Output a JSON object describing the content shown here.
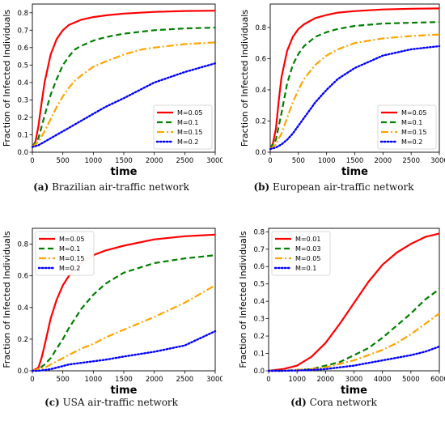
{
  "chart_data": [
    {
      "type": "line",
      "caption_tag": "(a)",
      "caption_text": "Brazilian air-traffic network",
      "xlabel": "time",
      "ylabel": "Fraction of Infected Individuals",
      "xlim": [
        0,
        3000
      ],
      "ylim": [
        0,
        0.85
      ],
      "xticks": [
        0,
        500,
        1000,
        1500,
        2000,
        2500,
        3000
      ],
      "yticks": [
        0.0,
        0.1,
        0.2,
        0.3,
        0.4,
        0.5,
        0.6,
        0.7,
        0.8
      ],
      "legend_position": "bottom-right",
      "series": [
        {
          "name": "M=0.05",
          "color": "#ff0000",
          "style": "solid",
          "x": [
            0,
            50,
            100,
            150,
            200,
            300,
            400,
            500,
            600,
            700,
            800,
            1000,
            1200,
            1500,
            2000,
            2500,
            3000
          ],
          "y": [
            0.03,
            0.06,
            0.15,
            0.28,
            0.4,
            0.56,
            0.65,
            0.7,
            0.73,
            0.745,
            0.76,
            0.775,
            0.785,
            0.795,
            0.805,
            0.81,
            0.812
          ]
        },
        {
          "name": "M=0.1",
          "color": "#008000",
          "style": "dashed",
          "x": [
            0,
            100,
            200,
            300,
            400,
            500,
            600,
            700,
            800,
            1000,
            1200,
            1500,
            2000,
            2500,
            3000
          ],
          "y": [
            0.03,
            0.08,
            0.21,
            0.33,
            0.42,
            0.5,
            0.55,
            0.59,
            0.61,
            0.64,
            0.66,
            0.68,
            0.7,
            0.71,
            0.715
          ]
        },
        {
          "name": "M=0.15",
          "color": "#ffa500",
          "style": "dashdot",
          "x": [
            0,
            100,
            200,
            300,
            400,
            500,
            600,
            700,
            800,
            1000,
            1200,
            1500,
            1800,
            2000,
            2500,
            3000
          ],
          "y": [
            0.03,
            0.06,
            0.12,
            0.19,
            0.26,
            0.32,
            0.37,
            0.41,
            0.44,
            0.49,
            0.52,
            0.56,
            0.59,
            0.6,
            0.62,
            0.63
          ]
        },
        {
          "name": "M=0.2",
          "color": "#0000ff",
          "style": "dotted",
          "x": [
            0,
            100,
            200,
            300,
            400,
            500,
            600,
            700,
            800,
            1000,
            1200,
            1500,
            2000,
            2500,
            3000
          ],
          "y": [
            0.03,
            0.04,
            0.06,
            0.08,
            0.1,
            0.12,
            0.14,
            0.16,
            0.18,
            0.22,
            0.26,
            0.31,
            0.4,
            0.46,
            0.51
          ]
        }
      ]
    },
    {
      "type": "line",
      "caption_tag": "(b)",
      "caption_text": "European air-traffic network",
      "xlabel": "time",
      "ylabel": "Fraction of Infected Individuals",
      "xlim": [
        0,
        3000
      ],
      "ylim": [
        0,
        0.95
      ],
      "xticks": [
        0,
        500,
        1000,
        1500,
        2000,
        2500,
        3000
      ],
      "yticks": [
        0.0,
        0.2,
        0.4,
        0.6,
        0.8
      ],
      "legend_position": "bottom-right",
      "series": [
        {
          "name": "M=0.05",
          "color": "#ff0000",
          "style": "solid",
          "x": [
            0,
            50,
            100,
            150,
            200,
            300,
            400,
            500,
            600,
            800,
            1000,
            1200,
            1500,
            2000,
            2500,
            3000
          ],
          "y": [
            0.02,
            0.06,
            0.15,
            0.33,
            0.48,
            0.65,
            0.74,
            0.79,
            0.82,
            0.86,
            0.88,
            0.895,
            0.905,
            0.915,
            0.92,
            0.922
          ]
        },
        {
          "name": "M=0.1",
          "color": "#008000",
          "style": "dashed",
          "x": [
            0,
            100,
            200,
            300,
            400,
            500,
            600,
            800,
            1000,
            1200,
            1500,
            2000,
            2500,
            3000
          ],
          "y": [
            0.02,
            0.08,
            0.25,
            0.44,
            0.56,
            0.63,
            0.68,
            0.74,
            0.77,
            0.79,
            0.81,
            0.825,
            0.83,
            0.835
          ]
        },
        {
          "name": "M=0.15",
          "color": "#ffa500",
          "style": "dashdot",
          "x": [
            0,
            100,
            200,
            300,
            400,
            500,
            600,
            800,
            1000,
            1200,
            1500,
            2000,
            2500,
            3000
          ],
          "y": [
            0.02,
            0.05,
            0.12,
            0.22,
            0.32,
            0.4,
            0.47,
            0.56,
            0.62,
            0.66,
            0.7,
            0.73,
            0.745,
            0.755
          ]
        },
        {
          "name": "M=0.2",
          "color": "#0000ff",
          "style": "dotted",
          "x": [
            0,
            100,
            200,
            300,
            400,
            500,
            600,
            700,
            800,
            1000,
            1200,
            1500,
            2000,
            2500,
            3000
          ],
          "y": [
            0.02,
            0.03,
            0.05,
            0.08,
            0.12,
            0.17,
            0.22,
            0.27,
            0.32,
            0.4,
            0.47,
            0.54,
            0.62,
            0.66,
            0.68
          ]
        }
      ]
    },
    {
      "type": "line",
      "caption_tag": "(c)",
      "caption_text": "USA air-traffic network",
      "xlabel": "time",
      "ylabel": "Fraction of Infected Individuals",
      "xlim": [
        0,
        3000
      ],
      "ylim": [
        0,
        0.9
      ],
      "xticks": [
        0,
        500,
        1000,
        1500,
        2000,
        2500,
        3000
      ],
      "yticks": [
        0.0,
        0.2,
        0.4,
        0.6,
        0.8
      ],
      "legend_position": "top-left",
      "series": [
        {
          "name": "M=0.05",
          "color": "#ff0000",
          "style": "solid",
          "x": [
            0,
            100,
            150,
            200,
            300,
            400,
            500,
            600,
            800,
            1000,
            1200,
            1500,
            2000,
            2500,
            3000
          ],
          "y": [
            0.0,
            0.02,
            0.08,
            0.16,
            0.33,
            0.45,
            0.54,
            0.6,
            0.68,
            0.73,
            0.76,
            0.79,
            0.83,
            0.85,
            0.86
          ]
        },
        {
          "name": "M=0.1",
          "color": "#008000",
          "style": "dashed",
          "x": [
            0,
            100,
            200,
            300,
            400,
            500,
            600,
            800,
            1000,
            1200,
            1500,
            2000,
            2500,
            3000
          ],
          "y": [
            0.0,
            0.01,
            0.04,
            0.08,
            0.14,
            0.2,
            0.27,
            0.39,
            0.48,
            0.55,
            0.62,
            0.68,
            0.71,
            0.73
          ]
        },
        {
          "name": "M=0.15",
          "color": "#ffa500",
          "style": "dashdot",
          "x": [
            0,
            100,
            200,
            300,
            400,
            500,
            600,
            800,
            1000,
            1200,
            1500,
            2000,
            2500,
            3000
          ],
          "y": [
            0.0,
            0.01,
            0.02,
            0.04,
            0.06,
            0.08,
            0.1,
            0.14,
            0.17,
            0.21,
            0.26,
            0.34,
            0.43,
            0.54
          ]
        },
        {
          "name": "M=0.2",
          "color": "#0000ff",
          "style": "dotted",
          "x": [
            0,
            100,
            200,
            300,
            400,
            500,
            600,
            800,
            1000,
            1200,
            1500,
            2000,
            2500,
            3000
          ],
          "y": [
            0.0,
            0.0,
            0.005,
            0.01,
            0.02,
            0.03,
            0.04,
            0.05,
            0.06,
            0.07,
            0.09,
            0.12,
            0.16,
            0.25
          ]
        }
      ]
    },
    {
      "type": "line",
      "caption_tag": "(d)",
      "caption_text": "Cora network",
      "xlabel": "time",
      "ylabel": "Fraction of Infected Individuals",
      "xlim": [
        0,
        6000
      ],
      "ylim": [
        0,
        0.82
      ],
      "xticks": [
        0,
        1000,
        2000,
        3000,
        4000,
        5000,
        6000
      ],
      "yticks": [
        0.0,
        0.1,
        0.2,
        0.3,
        0.4,
        0.5,
        0.6,
        0.7,
        0.8
      ],
      "legend_position": "top-left",
      "series": [
        {
          "name": "M=0.01",
          "color": "#ff0000",
          "style": "solid",
          "x": [
            0,
            500,
            1000,
            1500,
            2000,
            2500,
            3000,
            3500,
            4000,
            4500,
            5000,
            5500,
            6000
          ],
          "y": [
            0.0,
            0.01,
            0.03,
            0.08,
            0.16,
            0.27,
            0.39,
            0.51,
            0.61,
            0.68,
            0.73,
            0.77,
            0.79
          ]
        },
        {
          "name": "M=0.03",
          "color": "#008000",
          "style": "dashed",
          "x": [
            0,
            500,
            1000,
            1500,
            2000,
            2500,
            3000,
            3500,
            4000,
            4500,
            5000,
            5500,
            6000
          ],
          "y": [
            0.0,
            0.0,
            0.005,
            0.01,
            0.03,
            0.05,
            0.09,
            0.13,
            0.19,
            0.26,
            0.33,
            0.41,
            0.47
          ]
        },
        {
          "name": "M=0.05",
          "color": "#ffa500",
          "style": "dashdot",
          "x": [
            0,
            500,
            1000,
            1500,
            2000,
            2500,
            3000,
            3500,
            4000,
            4500,
            5000,
            5500,
            6000
          ],
          "y": [
            0.0,
            0.0,
            0.005,
            0.01,
            0.02,
            0.04,
            0.06,
            0.09,
            0.12,
            0.16,
            0.21,
            0.27,
            0.33
          ]
        },
        {
          "name": "M=0.1",
          "color": "#0000ff",
          "style": "dotted",
          "x": [
            0,
            500,
            1000,
            1500,
            2000,
            2500,
            3000,
            3500,
            4000,
            4500,
            5000,
            5500,
            6000
          ],
          "y": [
            0.0,
            0.0,
            0.002,
            0.005,
            0.01,
            0.02,
            0.03,
            0.045,
            0.06,
            0.075,
            0.09,
            0.11,
            0.14
          ]
        }
      ]
    }
  ]
}
